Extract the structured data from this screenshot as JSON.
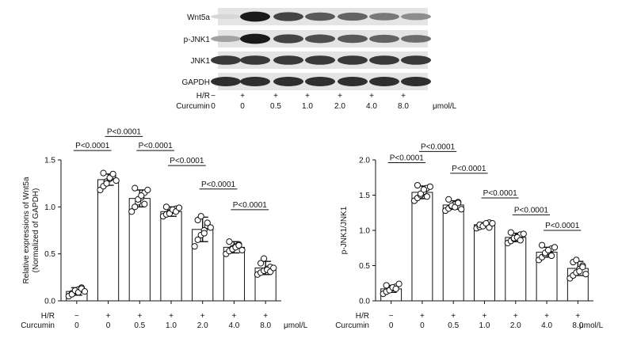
{
  "blot": {
    "bands": [
      {
        "label": "Wnt5a",
        "intensities": [
          0.05,
          0.95,
          0.75,
          0.65,
          0.6,
          0.5,
          0.4
        ]
      },
      {
        "label": "p-JNK1",
        "intensities": [
          0.3,
          0.95,
          0.75,
          0.7,
          0.65,
          0.6,
          0.55
        ]
      },
      {
        "label": "JNK1",
        "intensities": [
          0.8,
          0.8,
          0.8,
          0.8,
          0.8,
          0.8,
          0.8
        ]
      },
      {
        "label": "GAPDH",
        "intensities": [
          0.85,
          0.85,
          0.85,
          0.85,
          0.85,
          0.85,
          0.85
        ]
      }
    ],
    "hr_label": "H/R",
    "curcumin_label": "Curcumin",
    "unit": "μmol/L",
    "hr_values": [
      "−",
      "+",
      "+",
      "+",
      "+",
      "+",
      "+"
    ],
    "curcumin_values": [
      "0",
      "0",
      "0.5",
      "1.0",
      "2.0",
      "4.0",
      "8.0"
    ]
  },
  "chart_data": [
    {
      "type": "bar",
      "ylabel": "Relative expressions of Wnt5a (Normalized of GAPDH)",
      "ylabel_lines": [
        "Relative expressions of Wnt5a",
        "(Normalized of GAPDH)"
      ],
      "ylim": [
        0,
        1.5
      ],
      "yticks": [
        "0.0",
        "0.5",
        "1.0",
        "1.5"
      ],
      "ytick_values": [
        0,
        0.5,
        1.0,
        1.5
      ],
      "hr_values": [
        "−",
        "+",
        "+",
        "+",
        "+",
        "+",
        "+"
      ],
      "curcumin_values": [
        "0",
        "0",
        "0.5",
        "1.0",
        "2.0",
        "4.0",
        "8.0"
      ],
      "hr_label": "H/R",
      "curcumin_label": "Curcumin",
      "unit": "μmol/L",
      "values": [
        0.1,
        1.29,
        1.09,
        0.95,
        0.76,
        0.57,
        0.35
      ],
      "errors": [
        0.04,
        0.06,
        0.09,
        0.05,
        0.13,
        0.06,
        0.07
      ],
      "points": [
        [
          0.05,
          0.08,
          0.1,
          0.12,
          0.14,
          0.07,
          0.11,
          0.09,
          0.13,
          0.1
        ],
        [
          1.18,
          1.22,
          1.27,
          1.3,
          1.33,
          1.36,
          1.25,
          1.31,
          1.35,
          1.28
        ],
        [
          0.95,
          1.0,
          1.05,
          1.1,
          1.15,
          1.2,
          1.08,
          1.12,
          1.03,
          1.18
        ],
        [
          0.9,
          0.92,
          0.94,
          0.96,
          0.98,
          1.0,
          0.93,
          0.97,
          0.95,
          0.99
        ],
        [
          0.58,
          0.65,
          0.7,
          0.75,
          0.8,
          0.86,
          0.9,
          0.72,
          0.83,
          0.78
        ],
        [
          0.5,
          0.53,
          0.56,
          0.58,
          0.6,
          0.63,
          0.55,
          0.57,
          0.59,
          0.54
        ],
        [
          0.28,
          0.3,
          0.32,
          0.34,
          0.36,
          0.4,
          0.45,
          0.33,
          0.31,
          0.35
        ]
      ],
      "brackets": [
        {
          "from": 0,
          "to": 1,
          "text": "P<0.0001",
          "y": 1.6
        },
        {
          "from": 1,
          "to": 2,
          "text": "P<0.0001",
          "y": 1.75
        },
        {
          "from": 2,
          "to": 3,
          "text": "P<0.0001",
          "y": 1.6
        },
        {
          "from": 3,
          "to": 4,
          "text": "P<0.0001",
          "y": 1.44
        },
        {
          "from": 4,
          "to": 5,
          "text": "P<0.0001",
          "y": 1.19
        },
        {
          "from": 5,
          "to": 6,
          "text": "P<0.0001",
          "y": 0.97
        }
      ]
    },
    {
      "type": "bar",
      "ylabel": "p-JNK1/JNK1",
      "ylabel_lines": [
        "p-JNK1/JNK1"
      ],
      "ylim": [
        0,
        2.0
      ],
      "yticks": [
        "0.0",
        "0.5",
        "1.0",
        "1.5",
        "2.0"
      ],
      "ytick_values": [
        0,
        0.5,
        1.0,
        1.5,
        2.0
      ],
      "hr_values": [
        "−",
        "+",
        "+",
        "+",
        "+",
        "+",
        "+"
      ],
      "curcumin_values": [
        "0",
        "0",
        "0.5",
        "1.0",
        "2.0",
        "4.0",
        "8.0"
      ],
      "hr_label": "H/R",
      "curcumin_label": "Curcumin",
      "unit": "μmol/L",
      "values": [
        0.17,
        1.54,
        1.36,
        1.08,
        0.9,
        0.69,
        0.46
      ],
      "errors": [
        0.05,
        0.09,
        0.06,
        0.03,
        0.06,
        0.07,
        0.1
      ],
      "points": [
        [
          0.1,
          0.13,
          0.16,
          0.18,
          0.2,
          0.22,
          0.15,
          0.19,
          0.17,
          0.24
        ],
        [
          1.42,
          1.46,
          1.5,
          1.55,
          1.6,
          1.64,
          1.52,
          1.58,
          1.48,
          1.62
        ],
        [
          1.28,
          1.31,
          1.34,
          1.37,
          1.4,
          1.44,
          1.35,
          1.33,
          1.39,
          1.3
        ],
        [
          1.03,
          1.05,
          1.07,
          1.09,
          1.11,
          1.08,
          1.06,
          1.1,
          1.04,
          1.1
        ],
        [
          0.82,
          0.85,
          0.88,
          0.91,
          0.94,
          0.97,
          0.89,
          0.9,
          0.86,
          0.95
        ],
        [
          0.58,
          0.62,
          0.66,
          0.7,
          0.74,
          0.79,
          0.68,
          0.72,
          0.64,
          0.76
        ],
        [
          0.32,
          0.36,
          0.4,
          0.45,
          0.5,
          0.55,
          0.58,
          0.42,
          0.48,
          0.38
        ]
      ],
      "brackets": [
        {
          "from": 0,
          "to": 1,
          "text": "P<0.0001",
          "y": 1.96
        },
        {
          "from": 1,
          "to": 2,
          "text": "P<0.0001",
          "y": 2.12
        },
        {
          "from": 2,
          "to": 3,
          "text": "P<0.0001",
          "y": 1.81
        },
        {
          "from": 3,
          "to": 4,
          "text": "P<0.0001",
          "y": 1.46
        },
        {
          "from": 4,
          "to": 5,
          "text": "P<0.0001",
          "y": 1.22
        },
        {
          "from": 5,
          "to": 6,
          "text": "P<0.0001",
          "y": 1.0
        }
      ]
    }
  ]
}
